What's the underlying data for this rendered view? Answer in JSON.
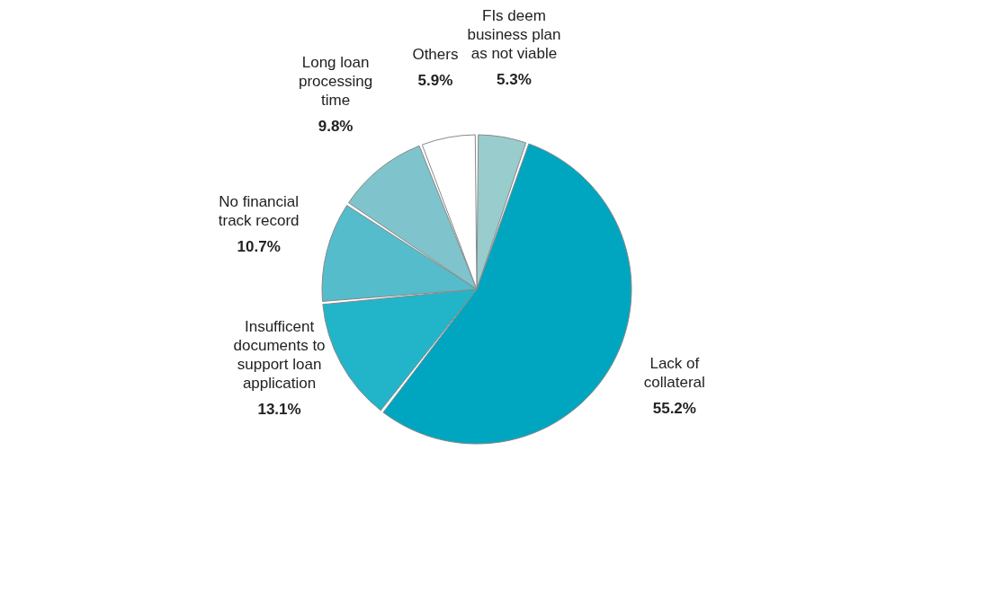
{
  "chart_data": {
    "type": "pie",
    "categories": [
      "FIs deem business plan as not viable",
      "Lack of collateral",
      "Insufficent documents to support loan application",
      "No financial track record",
      "Long loan processing time",
      "Others"
    ],
    "values": [
      5.3,
      55.2,
      13.1,
      10.7,
      9.8,
      5.9
    ],
    "colors": [
      "#99cccc",
      "#00a6bf",
      "#22b5c9",
      "#55bccb",
      "#7fc4cc",
      "#ffffff"
    ],
    "value_labels": [
      "5.3%",
      "55.2%",
      "13.1%",
      "10.7%",
      "9.8%",
      "5.9%"
    ],
    "legend": false
  }
}
